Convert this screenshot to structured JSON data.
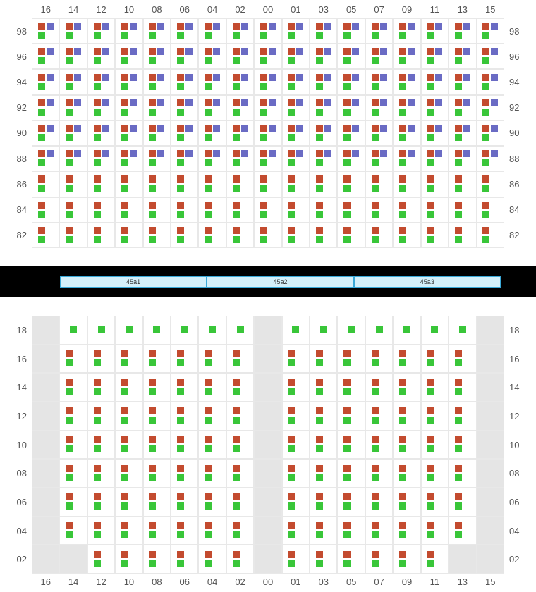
{
  "colors": {
    "orange": "#c34b2f",
    "purple": "#6a6bc4",
    "green": "#39c639",
    "gray_cell": "#e5e5e5",
    "sep_bg": "#d4f0fa",
    "sep_border": "#3aa9d8",
    "label": "#555555"
  },
  "columns": [
    "16",
    "14",
    "12",
    "10",
    "08",
    "06",
    "04",
    "02",
    "00",
    "01",
    "03",
    "05",
    "07",
    "09",
    "11",
    "13",
    "15"
  ],
  "top": {
    "rows": [
      "98",
      "96",
      "94",
      "92",
      "90",
      "88",
      "86",
      "84",
      "82"
    ],
    "groupA_rows": [
      "98",
      "96",
      "94",
      "92",
      "90",
      "88"
    ],
    "groupB_rows": [
      "86",
      "84",
      "82"
    ]
  },
  "separator": [
    "45a1",
    "45a2",
    "45a3"
  ],
  "bottom": {
    "rows": [
      "18",
      "16",
      "14",
      "12",
      "10",
      "08",
      "06",
      "04",
      "02"
    ],
    "gray_cols": [
      "16",
      "00",
      "15"
    ],
    "row18_green_only": [
      "14",
      "12",
      "10",
      "08",
      "06",
      "04",
      "02",
      "01",
      "03",
      "05",
      "07",
      "09",
      "11",
      "13"
    ],
    "row02_cols": [
      "12",
      "10",
      "08",
      "06",
      "04",
      "02",
      "01",
      "03",
      "05",
      "07",
      "09",
      "11"
    ],
    "row02_extra_gray": [
      "14",
      "13"
    ]
  }
}
